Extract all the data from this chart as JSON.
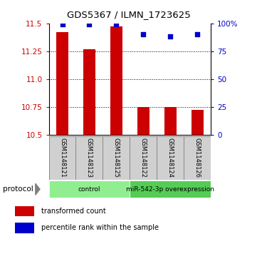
{
  "title": "GDS5367 / ILMN_1723625",
  "samples": [
    "GSM1148121",
    "GSM1148123",
    "GSM1148125",
    "GSM1148122",
    "GSM1148124",
    "GSM1148126"
  ],
  "transformed_counts": [
    11.42,
    11.27,
    11.47,
    10.75,
    10.75,
    10.72
  ],
  "percentile_ranks": [
    99,
    99,
    99,
    90,
    88,
    90
  ],
  "ylim_left": [
    10.5,
    11.5
  ],
  "ylim_right": [
    0,
    100
  ],
  "yticks_left": [
    10.5,
    10.75,
    11.0,
    11.25,
    11.5
  ],
  "yticks_right": [
    0,
    25,
    50,
    75,
    100
  ],
  "bar_color": "#cc0000",
  "dot_color": "#0000cc",
  "bar_bottom": 10.5,
  "groups": [
    {
      "label": "control",
      "span": [
        0,
        3
      ],
      "color": "#90ee90"
    },
    {
      "label": "miR-542-3p overexpression",
      "span": [
        3,
        6
      ],
      "color": "#55cc55"
    }
  ],
  "protocol_label": "protocol",
  "legend_bar_label": "transformed count",
  "legend_dot_label": "percentile rank within the sample",
  "tick_label_color_left": "#cc0000",
  "tick_label_color_right": "#0000cc",
  "sample_area_color": "#d0d0d0",
  "sample_area_border": "#888888",
  "fig_width": 3.61,
  "fig_height": 3.63,
  "fig_dpi": 100
}
